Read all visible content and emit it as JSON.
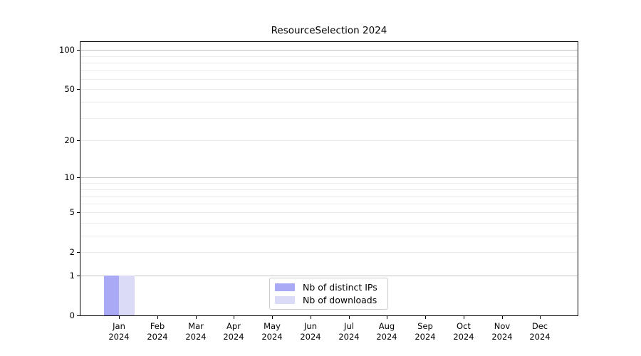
{
  "chart_data": {
    "type": "bar",
    "title": "ResourceSelection 2024",
    "categories": [
      "Jan",
      "Feb",
      "Mar",
      "Apr",
      "May",
      "Jun",
      "Jul",
      "Aug",
      "Sep",
      "Oct",
      "Nov",
      "Dec"
    ],
    "tick_year": "2024",
    "series": [
      {
        "name": "Nb of distinct IPs",
        "color": "#a9a9f5",
        "values": [
          1,
          0,
          0,
          0,
          0,
          0,
          0,
          0,
          0,
          0,
          0,
          0
        ]
      },
      {
        "name": "Nb of downloads",
        "color": "#dbdbf8",
        "values": [
          1,
          0,
          0,
          0,
          0,
          0,
          0,
          0,
          0,
          0,
          0,
          0
        ]
      }
    ],
    "y_axis": {
      "scale": "log10(1+y)",
      "ticks": [
        0,
        1,
        2,
        5,
        10,
        20,
        50,
        100
      ],
      "ylim": [
        0,
        115
      ],
      "major_gridlines": [
        1,
        10,
        100
      ],
      "minor_gridlines": [
        2,
        3,
        4,
        5,
        6,
        7,
        8,
        9,
        20,
        30,
        40,
        50,
        60,
        70,
        80,
        90
      ]
    },
    "xlabel": "",
    "ylabel": "",
    "grid": "horizontal-only",
    "legend_position": "bottom-center",
    "colors": {
      "major_grid": "#c4c4c4",
      "minor_grid": "#ebebeb",
      "spine": "#000000"
    }
  }
}
